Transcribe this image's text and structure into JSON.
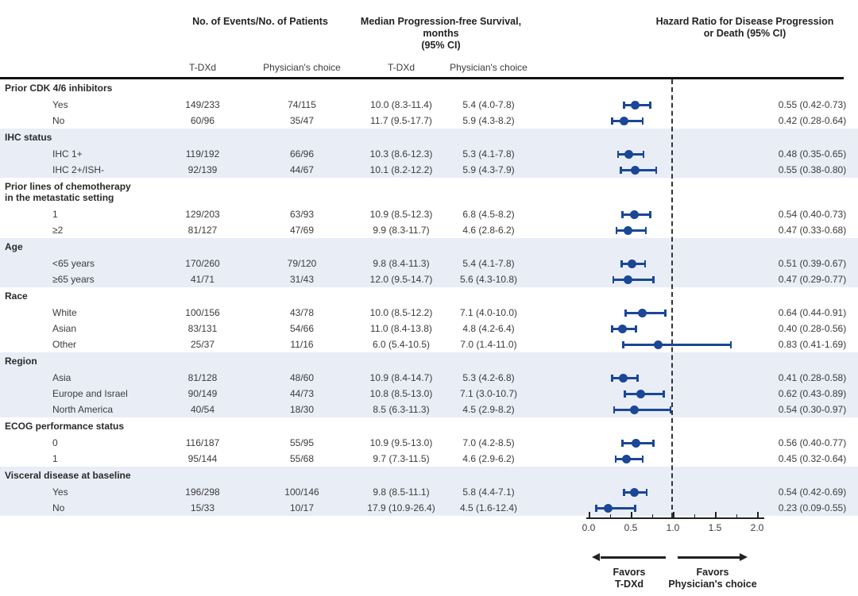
{
  "figure": {
    "headers": {
      "events": "No. of Events/No. of Patients",
      "median_line1": "Median Progression-free Survival, months",
      "median_line2": "(95% CI)",
      "hr_line1": "Hazard Ratio for Disease Progression",
      "hr_line2": "or Death  (95% CI)"
    },
    "subheaders": {
      "events_tdxd": "T-DXd",
      "events_pc": "Physician's choice",
      "median_tdxd": "T-DXd",
      "median_pc": "Physician's choice"
    },
    "favors": {
      "left_line1": "Favors",
      "left_line2": "T-DXd",
      "right_line1": "Favors",
      "right_line2": "Physician's choice"
    },
    "colors": {
      "marker_blue": "#1a4796",
      "band_blue": "#e9edf6",
      "line_black": "#222222"
    }
  },
  "chart_data": {
    "type": "scatter",
    "subtype": "forest-plot",
    "title": "Hazard Ratio for Disease Progression or Death (95% CI)",
    "xlabel": "Hazard Ratio",
    "axis": {
      "min": 0.0,
      "max": 2.0,
      "major_ticks": [
        "0.0",
        "0.5",
        "1.0",
        "1.5",
        "2.0"
      ],
      "minor_tick_step": 0.25,
      "reference_line": 1.0,
      "reference_style": "dashed"
    },
    "groups": [
      {
        "label": [
          "Prior CDK 4/6 inhibitors"
        ],
        "band": false,
        "rows": [
          {
            "label": "Yes",
            "tdxd_events": "149/233",
            "pc_events": "74/115",
            "tdxd_median": "10.0 (8.3-11.4)",
            "pc_median": "5.4 (4.0-7.8)",
            "hr_text": "0.55 (0.42-0.73)",
            "hr": 0.55,
            "lo": 0.42,
            "hi": 0.73
          },
          {
            "label": "No",
            "tdxd_events": "60/96",
            "pc_events": "35/47",
            "tdxd_median": "11.7 (9.5-17.7)",
            "pc_median": "5.9 (4.3-8.2)",
            "hr_text": "0.42 (0.28-0.64)",
            "hr": 0.42,
            "lo": 0.28,
            "hi": 0.64
          }
        ]
      },
      {
        "label": [
          "IHC status"
        ],
        "band": true,
        "rows": [
          {
            "label": "IHC 1+",
            "tdxd_events": "119/192",
            "pc_events": "66/96",
            "tdxd_median": "10.3 (8.6-12.3)",
            "pc_median": "5.3 (4.1-7.8)",
            "hr_text": "0.48 (0.35-0.65)",
            "hr": 0.48,
            "lo": 0.35,
            "hi": 0.65
          },
          {
            "label": "IHC 2+/ISH-",
            "tdxd_events": "92/139",
            "pc_events": "44/67",
            "tdxd_median": "10.1 (8.2-12.2)",
            "pc_median": "5.9 (4.3-7.9)",
            "hr_text": "0.55 (0.38-0.80)",
            "hr": 0.55,
            "lo": 0.38,
            "hi": 0.8
          }
        ]
      },
      {
        "label": [
          "Prior lines of chemotherapy",
          "in the metastatic setting"
        ],
        "band": false,
        "rows": [
          {
            "label": "1",
            "tdxd_events": "129/203",
            "pc_events": "63/93",
            "tdxd_median": "10.9 (8.5-12.3)",
            "pc_median": "6.8 (4.5-8.2)",
            "hr_text": "0.54 (0.40-0.73)",
            "hr": 0.54,
            "lo": 0.4,
            "hi": 0.73
          },
          {
            "label": "≥2",
            "tdxd_events": "81/127",
            "pc_events": "47/69",
            "tdxd_median": "9.9 (8.3-11.7)",
            "pc_median": "4.6 (2.8-6.2)",
            "hr_text": "0.47 (0.33-0.68)",
            "hr": 0.47,
            "lo": 0.33,
            "hi": 0.68
          }
        ]
      },
      {
        "label": [
          "Age"
        ],
        "band": true,
        "rows": [
          {
            "label": "<65 years",
            "tdxd_events": "170/260",
            "pc_events": "79/120",
            "tdxd_median": "9.8 (8.4-11.3)",
            "pc_median": "5.4 (4.1-7.8)",
            "hr_text": "0.51 (0.39-0.67)",
            "hr": 0.51,
            "lo": 0.39,
            "hi": 0.67
          },
          {
            "label": "≥65 years",
            "tdxd_events": "41/71",
            "pc_events": "31/43",
            "tdxd_median": "12.0 (9.5-14.7)",
            "pc_median": "5.6 (4.3-10.8)",
            "hr_text": "0.47 (0.29-0.77)",
            "hr": 0.47,
            "lo": 0.29,
            "hi": 0.77
          }
        ]
      },
      {
        "label": [
          "Race"
        ],
        "band": false,
        "rows": [
          {
            "label": "White",
            "tdxd_events": "100/156",
            "pc_events": "43/78",
            "tdxd_median": "10.0 (8.5-12.2)",
            "pc_median": "7.1 (4.0-10.0)",
            "hr_text": "0.64 (0.44-0.91)",
            "hr": 0.64,
            "lo": 0.44,
            "hi": 0.91
          },
          {
            "label": "Asian",
            "tdxd_events": "83/131",
            "pc_events": "54/66",
            "tdxd_median": "11.0 (8.4-13.8)",
            "pc_median": "4.8 (4.2-6.4)",
            "hr_text": "0.40 (0.28-0.56)",
            "hr": 0.4,
            "lo": 0.28,
            "hi": 0.56
          },
          {
            "label": "Other",
            "tdxd_events": "25/37",
            "pc_events": "11/16",
            "tdxd_median": "6.0 (5.4-10.5)",
            "pc_median": "7.0 (1.4-11.0)",
            "hr_text": "0.83 (0.41-1.69)",
            "hr": 0.83,
            "lo": 0.41,
            "hi": 1.69
          }
        ]
      },
      {
        "label": [
          "Region"
        ],
        "band": true,
        "rows": [
          {
            "label": "Asia",
            "tdxd_events": "81/128",
            "pc_events": "48/60",
            "tdxd_median": "10.9 (8.4-14.7)",
            "pc_median": "5.3 (4.2-6.8)",
            "hr_text": "0.41 (0.28-0.58)",
            "hr": 0.41,
            "lo": 0.28,
            "hi": 0.58
          },
          {
            "label": "Europe and Israel",
            "tdxd_events": "90/149",
            "pc_events": "44/73",
            "tdxd_median": "10.8 (8.5-13.0)",
            "pc_median": "7.1 (3.0-10.7)",
            "hr_text": "0.62 (0.43-0.89)",
            "hr": 0.62,
            "lo": 0.43,
            "hi": 0.89
          },
          {
            "label": "North America",
            "tdxd_events": "40/54",
            "pc_events": "18/30",
            "tdxd_median": "8.5 (6.3-11.3)",
            "pc_median": "4.5 (2.9-8.2)",
            "hr_text": "0.54 (0.30-0.97)",
            "hr": 0.54,
            "lo": 0.3,
            "hi": 0.97
          }
        ]
      },
      {
        "label": [
          "ECOG performance status"
        ],
        "band": false,
        "rows": [
          {
            "label": "0",
            "tdxd_events": "116/187",
            "pc_events": "55/95",
            "tdxd_median": "10.9 (9.5-13.0)",
            "pc_median": "7.0 (4.2-8.5)",
            "hr_text": "0.56 (0.40-0.77)",
            "hr": 0.56,
            "lo": 0.4,
            "hi": 0.77
          },
          {
            "label": "1",
            "tdxd_events": "95/144",
            "pc_events": "55/68",
            "tdxd_median": "9.7 (7.3-11.5)",
            "pc_median": "4.6 (2.9-6.2)",
            "hr_text": "0.45 (0.32-0.64)",
            "hr": 0.45,
            "lo": 0.32,
            "hi": 0.64
          }
        ]
      },
      {
        "label": [
          "Visceral disease at baseline"
        ],
        "band": true,
        "rows": [
          {
            "label": "Yes",
            "tdxd_events": "196/298",
            "pc_events": "100/146",
            "tdxd_median": "9.8 (8.5-11.1)",
            "pc_median": "5.8 (4.4-7.1)",
            "hr_text": "0.54 (0.42-0.69)",
            "hr": 0.54,
            "lo": 0.42,
            "hi": 0.69
          },
          {
            "label": "No",
            "tdxd_events": "15/33",
            "pc_events": "10/17",
            "tdxd_median": "17.9 (10.9-26.4)",
            "pc_median": "4.5 (1.6-12.4)",
            "hr_text": "0.23 (0.09-0.55)",
            "hr": 0.23,
            "lo": 0.09,
            "hi": 0.55
          }
        ]
      }
    ],
    "legend_annotations": [
      "Favors T-DXd (left of 1.0)",
      "Favors Physician's choice (right of 1.0)"
    ]
  }
}
